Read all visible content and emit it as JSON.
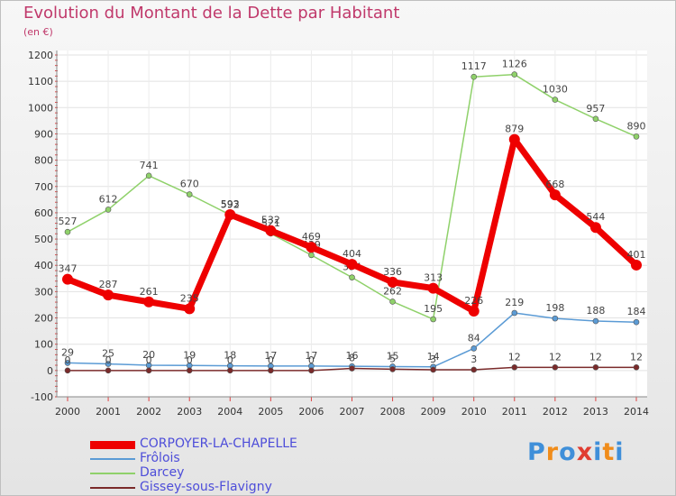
{
  "header": {
    "title": "Evolution du Montant de la Dette par Habitant",
    "unit": "(en €)"
  },
  "logo": {
    "text": "Proxiti",
    "colors": [
      "#3f8fd9",
      "#f08c1a",
      "#3f8fd9",
      "#e03c31",
      "#3f8fd9",
      "#f08c1a",
      "#3f8fd9"
    ]
  },
  "chart_data": {
    "type": "line",
    "title": "Evolution du Montant de la Dette par Habitant",
    "subtitle": "(en €)",
    "xlabel": "",
    "ylabel": "",
    "x": [
      "2000",
      "2001",
      "2002",
      "2003",
      "2004",
      "2005",
      "2006",
      "2007",
      "2008",
      "2009",
      "2010",
      "2011",
      "2012",
      "2013",
      "2014"
    ],
    "ylim": [
      -100,
      1200
    ],
    "yticks": [
      -100,
      0,
      100,
      200,
      300,
      400,
      500,
      600,
      700,
      800,
      900,
      1000,
      1100,
      1200
    ],
    "grid": true,
    "legend_position": "bottom-left",
    "series": [
      {
        "name": "Darcey",
        "color": "#8fd16a",
        "values": [
          527,
          612,
          741,
          670,
          592,
          521,
          439,
          354,
          262,
          195,
          1117,
          1126,
          1030,
          957,
          890
        ],
        "labels": [
          "527",
          "612",
          "741",
          "670",
          "592",
          "521",
          "439",
          "354",
          "262",
          "195",
          "1117",
          "1126",
          "1030",
          "957",
          "890"
        ]
      },
      {
        "name": "Frôlois",
        "color": "#5b9bd5",
        "values": [
          29,
          25,
          20,
          19,
          18,
          17,
          17,
          16,
          15,
          14,
          84,
          219,
          198,
          188,
          184
        ],
        "labels": [
          "29",
          "25",
          "20",
          "19",
          "18",
          "17",
          "17",
          "16",
          "15",
          "14",
          "84",
          "219",
          "198",
          "188",
          "184"
        ]
      },
      {
        "name": "Gissey-sous-Flavigny",
        "color": "#7a2a2a",
        "values": [
          0,
          0,
          0,
          0,
          0,
          0,
          0,
          8,
          5,
          3,
          3,
          12,
          12,
          12,
          12
        ],
        "labels": [
          "0",
          "0",
          "0",
          "0",
          "0",
          "0",
          "0",
          "8",
          "5",
          "3",
          "3",
          "12",
          "12",
          "12",
          "12"
        ]
      },
      {
        "name": "CORPOYER-LA-CHAPELLE",
        "color": "#ee0000",
        "values": [
          347,
          287,
          261,
          235,
          593,
          532,
          469,
          404,
          336,
          313,
          226,
          879,
          668,
          544,
          401
        ],
        "labels": [
          "347",
          "287",
          "261",
          "235",
          "593",
          "532",
          "469",
          "404",
          "336",
          "313",
          "226",
          "879",
          "668",
          "544",
          "401"
        ]
      }
    ]
  }
}
